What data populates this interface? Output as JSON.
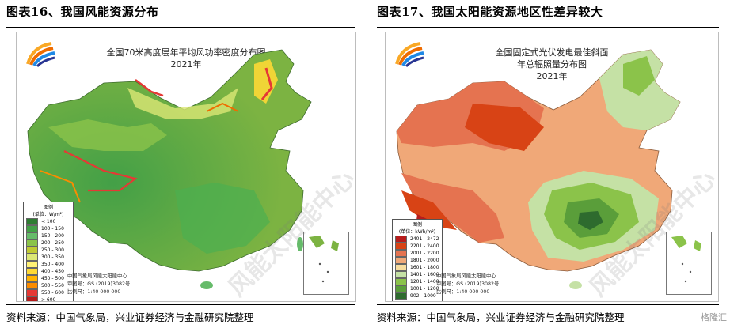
{
  "left_panel": {
    "figure_title": "图表16、我国风能资源分布",
    "map_title_line1": "全国70米高度层年平均风功率密度分布图",
    "map_title_line2": "2021年",
    "legend_title": "图例",
    "legend_unit": "(单位：W/m²)",
    "legend_items": [
      {
        "label": "< 100",
        "color": "#2e7d32"
      },
      {
        "label": "100 - 150",
        "color": "#43a047"
      },
      {
        "label": "150 - 200",
        "color": "#66bb6a"
      },
      {
        "label": "200 - 250",
        "color": "#8bc34a"
      },
      {
        "label": "250 - 300",
        "color": "#c0ca33"
      },
      {
        "label": "300 - 350",
        "color": "#dce775"
      },
      {
        "label": "350 - 400",
        "color": "#fff176"
      },
      {
        "label": "400 - 450",
        "color": "#fdd835"
      },
      {
        "label": "450 - 500",
        "color": "#ffb300"
      },
      {
        "label": "500 - 550",
        "color": "#fb8c00"
      },
      {
        "label": "550 - 600",
        "color": "#e53935"
      },
      {
        "label": "> 600",
        "color": "#b71c1c"
      }
    ],
    "credit_line1": "中国气象局风能太阳能中心",
    "credit_line2": "审图号：GS (2019)3082号",
    "credit_line3": "比例尺：1:40 000 000",
    "source": "资料来源：中国气象局，兴业证券经济与金融研究院整理"
  },
  "right_panel": {
    "figure_title": "图表17、我国太阳能资源地区性差异较大",
    "map_title_line1": "全国固定式光伏发电最佳斜面",
    "map_title_line2": "年总辐照量分布图",
    "map_title_line3": "2021年",
    "legend_title": "图例",
    "legend_unit": "(单位：kWh/m²)",
    "legend_items": [
      {
        "label": "2401 - 2472",
        "color": "#b71c1c"
      },
      {
        "label": "2201 - 2400",
        "color": "#d84315"
      },
      {
        "label": "2001 - 2200",
        "color": "#e57350"
      },
      {
        "label": "1801 - 2000",
        "color": "#f0a878"
      },
      {
        "label": "1601 - 1800",
        "color": "#f7dc9e"
      },
      {
        "label": "1401 - 1600",
        "color": "#c5e1a5"
      },
      {
        "label": "1201 - 1400",
        "color": "#8bc34a"
      },
      {
        "label": "1001 - 1200",
        "color": "#5a9e3a"
      },
      {
        "label": "902 - 1000",
        "color": "#2e6b2e"
      }
    ],
    "credit_line1": "中国气象局风能太阳能中心",
    "credit_line2": "审图号：GS (2019)3082号",
    "credit_line3": "比例尺：1:40 000 000",
    "source": "资料来源：中国气象局，兴业证券经济与金融研究院整理"
  },
  "watermark_text": "风能太阳能中心",
  "corner_badge": "格隆汇"
}
